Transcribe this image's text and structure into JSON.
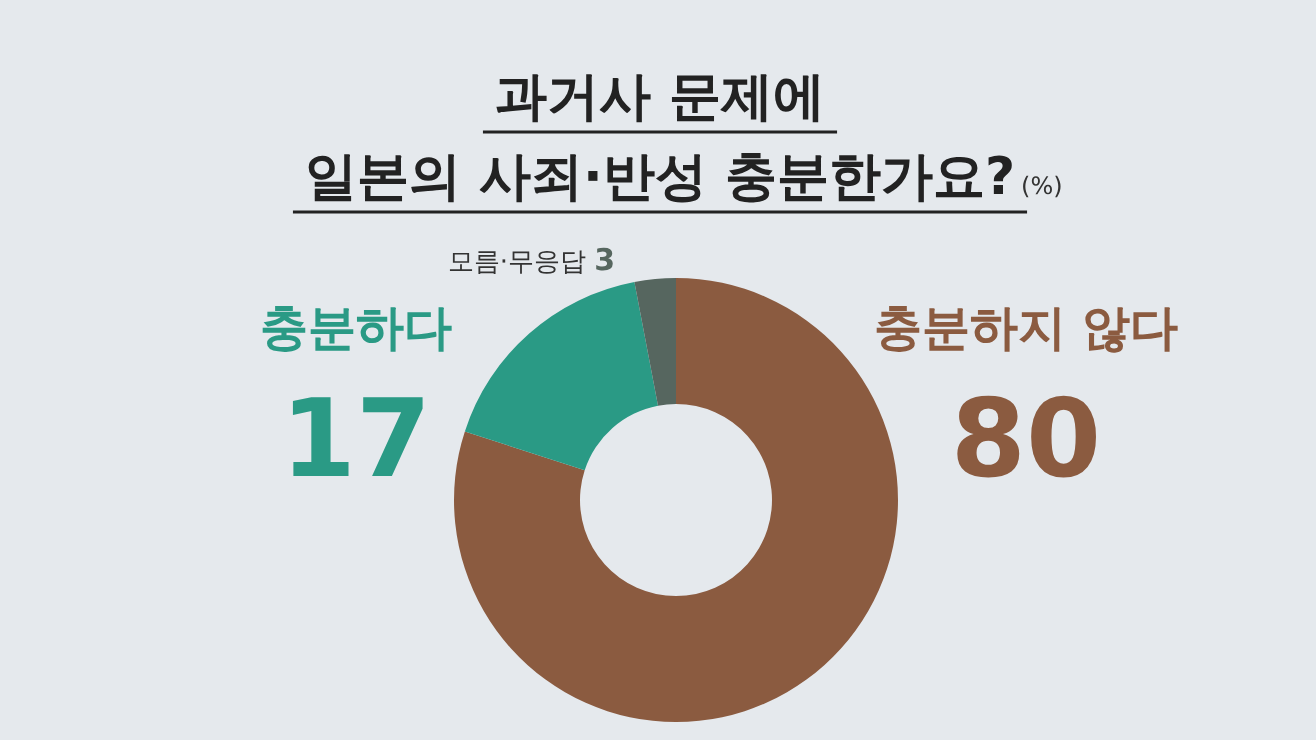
{
  "chart_data": {
    "type": "donut",
    "title": "과거사 문제에\n일본의 사죄·반성 충분한가요?",
    "subtitle": "(%)",
    "categories": [
      "충분하지 않다",
      "충분하다",
      "모름·무응답"
    ],
    "values": [
      80,
      17,
      3
    ],
    "colors": [
      "#8b5b40",
      "#2a9a85",
      "#56665f"
    ],
    "data_labels": true
  }
}
